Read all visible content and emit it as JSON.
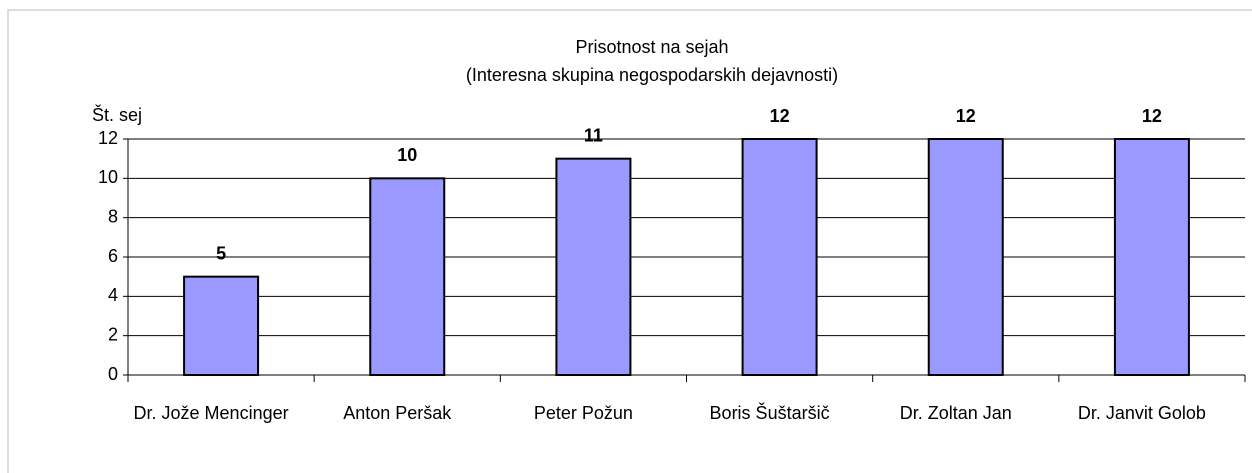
{
  "chart_data": {
    "type": "bar",
    "title": "Prisotnost na sejah",
    "subtitle": "(Interesna skupina negospodarskih dejavnosti)",
    "y_label": "Št. sej",
    "categories": [
      "Dr. Jože Mencinger",
      "Anton Peršak",
      "Peter Požun",
      "Boris Šuštaršič",
      "Dr. Zoltan Jan",
      "Dr. Janvit Golob"
    ],
    "values": [
      5,
      10,
      11,
      12,
      12,
      12
    ],
    "color": "#9999ff",
    "ylim": [
      0,
      12
    ],
    "yticks": [
      0,
      2,
      4,
      6,
      8,
      10,
      12
    ],
    "grid": true
  }
}
